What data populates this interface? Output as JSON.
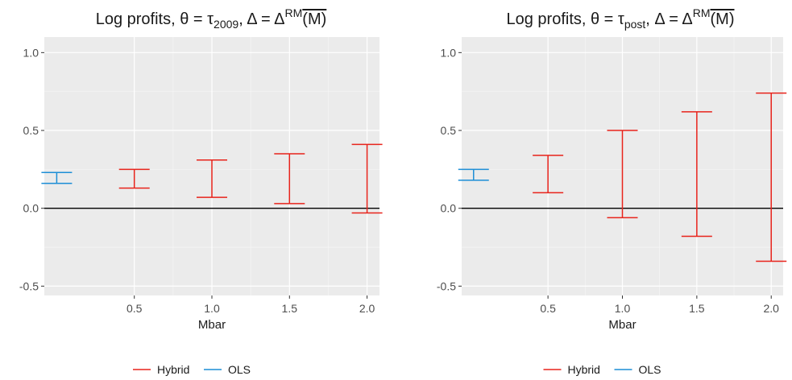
{
  "chart_data": [
    {
      "type": "errorbar",
      "title_main": "Log profits, θ = τ",
      "title_sub": "2009",
      "title_mid": ", Δ = Δ",
      "title_sup": "RM",
      "title_arg": "(M)",
      "xlabel": "Mbar",
      "ylabel": "",
      "x_ticks": [
        0.5,
        1.0,
        1.5,
        2.0
      ],
      "x_tick_labels": [
        "0.5",
        "1.0",
        "1.5",
        "2.0"
      ],
      "xlim": [
        -0.08,
        2.08
      ],
      "ylim": [
        -0.56,
        1.1
      ],
      "y_ticks": [
        -0.5,
        0.0,
        0.5,
        1.0
      ],
      "y_tick_labels": [
        "-0.5",
        "0.0",
        "0.5",
        "1.0"
      ],
      "hline": 0.0,
      "grid": true,
      "series": [
        {
          "name": "Hybrid",
          "color": "#e8231b",
          "points": [
            {
              "x": 0.5,
              "lower": 0.13,
              "upper": 0.25
            },
            {
              "x": 1.0,
              "lower": 0.07,
              "upper": 0.31
            },
            {
              "x": 1.5,
              "lower": 0.03,
              "upper": 0.35
            },
            {
              "x": 2.0,
              "lower": -0.03,
              "upper": 0.41
            }
          ]
        },
        {
          "name": "OLS",
          "color": "#1c8ed6",
          "points": [
            {
              "x": 0.0,
              "lower": 0.16,
              "upper": 0.23
            }
          ]
        }
      ]
    },
    {
      "type": "errorbar",
      "title_main": "Log profits, θ = τ",
      "title_sub": "post",
      "title_mid": ", Δ = Δ",
      "title_sup": "RM",
      "title_arg": "(M)",
      "xlabel": "Mbar",
      "ylabel": "",
      "x_ticks": [
        0.5,
        1.0,
        1.5,
        2.0
      ],
      "x_tick_labels": [
        "0.5",
        "1.0",
        "1.5",
        "2.0"
      ],
      "xlim": [
        -0.08,
        2.08
      ],
      "ylim": [
        -0.56,
        1.1
      ],
      "y_ticks": [
        -0.5,
        0.0,
        0.5,
        1.0
      ],
      "y_tick_labels": [
        "-0.5",
        "0.0",
        "0.5",
        "1.0"
      ],
      "hline": 0.0,
      "grid": true,
      "series": [
        {
          "name": "Hybrid",
          "color": "#e8231b",
          "points": [
            {
              "x": 0.5,
              "lower": 0.1,
              "upper": 0.34
            },
            {
              "x": 1.0,
              "lower": -0.06,
              "upper": 0.5
            },
            {
              "x": 1.5,
              "lower": -0.18,
              "upper": 0.62
            },
            {
              "x": 2.0,
              "lower": -0.34,
              "upper": 0.74
            }
          ]
        },
        {
          "name": "OLS",
          "color": "#1c8ed6",
          "points": [
            {
              "x": 0.0,
              "lower": 0.18,
              "upper": 0.25
            }
          ]
        }
      ]
    }
  ],
  "legend": {
    "position": "bottom",
    "items": [
      {
        "label": "Hybrid",
        "color": "#e8231b"
      },
      {
        "label": "OLS",
        "color": "#1c8ed6"
      }
    ]
  }
}
